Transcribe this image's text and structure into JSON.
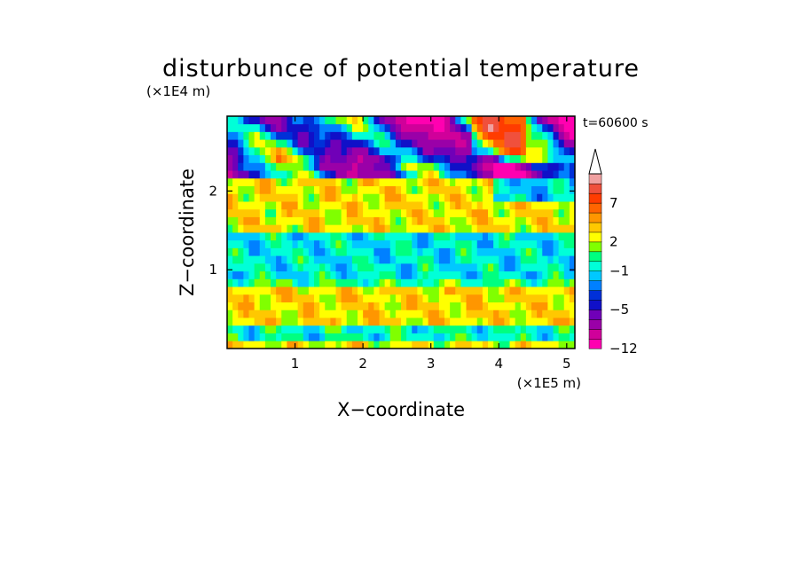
{
  "chart_data": {
    "type": "heatmap",
    "title": "disturbunce of potential temperature",
    "xlabel": "X−coordinate",
    "ylabel": "Z−coordinate",
    "x_unit": "(×1E5 m)",
    "y_unit": "(×1E4 m)",
    "time_label": "t=60600 s",
    "xlim": [
      0,
      5.12
    ],
    "ylim": [
      0,
      2.95
    ],
    "x_ticks": [
      1,
      2,
      3,
      4,
      5
    ],
    "y_ticks": [
      1,
      2
    ],
    "x_tick_labels": [
      "1",
      "2",
      "3",
      "4",
      "5"
    ],
    "y_tick_labels": [
      "1",
      "2"
    ],
    "colorbar": {
      "levels": [
        -12,
        -10,
        -8,
        -6,
        -5,
        -4,
        -3,
        -2,
        -1,
        0,
        1,
        2,
        3,
        4,
        5,
        7,
        8,
        9,
        10
      ],
      "labeled_levels": [
        "-12",
        "-5",
        "-1",
        "2",
        "7"
      ],
      "label_text": [
        "−12",
        "−5",
        "−1",
        "2",
        "7"
      ],
      "colors": [
        "#ff00b0",
        "#d0009a",
        "#9a00a8",
        "#7000b8",
        "#1010c8",
        "#0030d8",
        "#0080ff",
        "#00c8ff",
        "#00ffd8",
        "#00ff80",
        "#80ff00",
        "#ffff00",
        "#ffc800",
        "#ff9600",
        "#ff6400",
        "#ff3c00",
        "#f0503c",
        "#f0a0a0"
      ],
      "extend_top": true
    },
    "field": {
      "nx": 64,
      "nz": 30,
      "description_bands": [
        {
          "z_range": [
            0,
            0.1
          ],
          "dominant": "yellow/orange"
        },
        {
          "z_range": [
            0.1,
            0.3
          ],
          "dominant": "green/cyan"
        },
        {
          "z_range": [
            0.3,
            0.75
          ],
          "dominant": "orange/yellow"
        },
        {
          "z_range": [
            0.75,
            0.9
          ],
          "dominant": "green"
        },
        {
          "z_range": [
            0.9,
            1.5
          ],
          "dominant": "cyan/green"
        },
        {
          "z_range": [
            1.5,
            2.2
          ],
          "dominant": "orange/yellow"
        },
        {
          "z_range": [
            2.2,
            2.95
          ],
          "dominant": "blue/purple/red mixed"
        }
      ]
    }
  }
}
